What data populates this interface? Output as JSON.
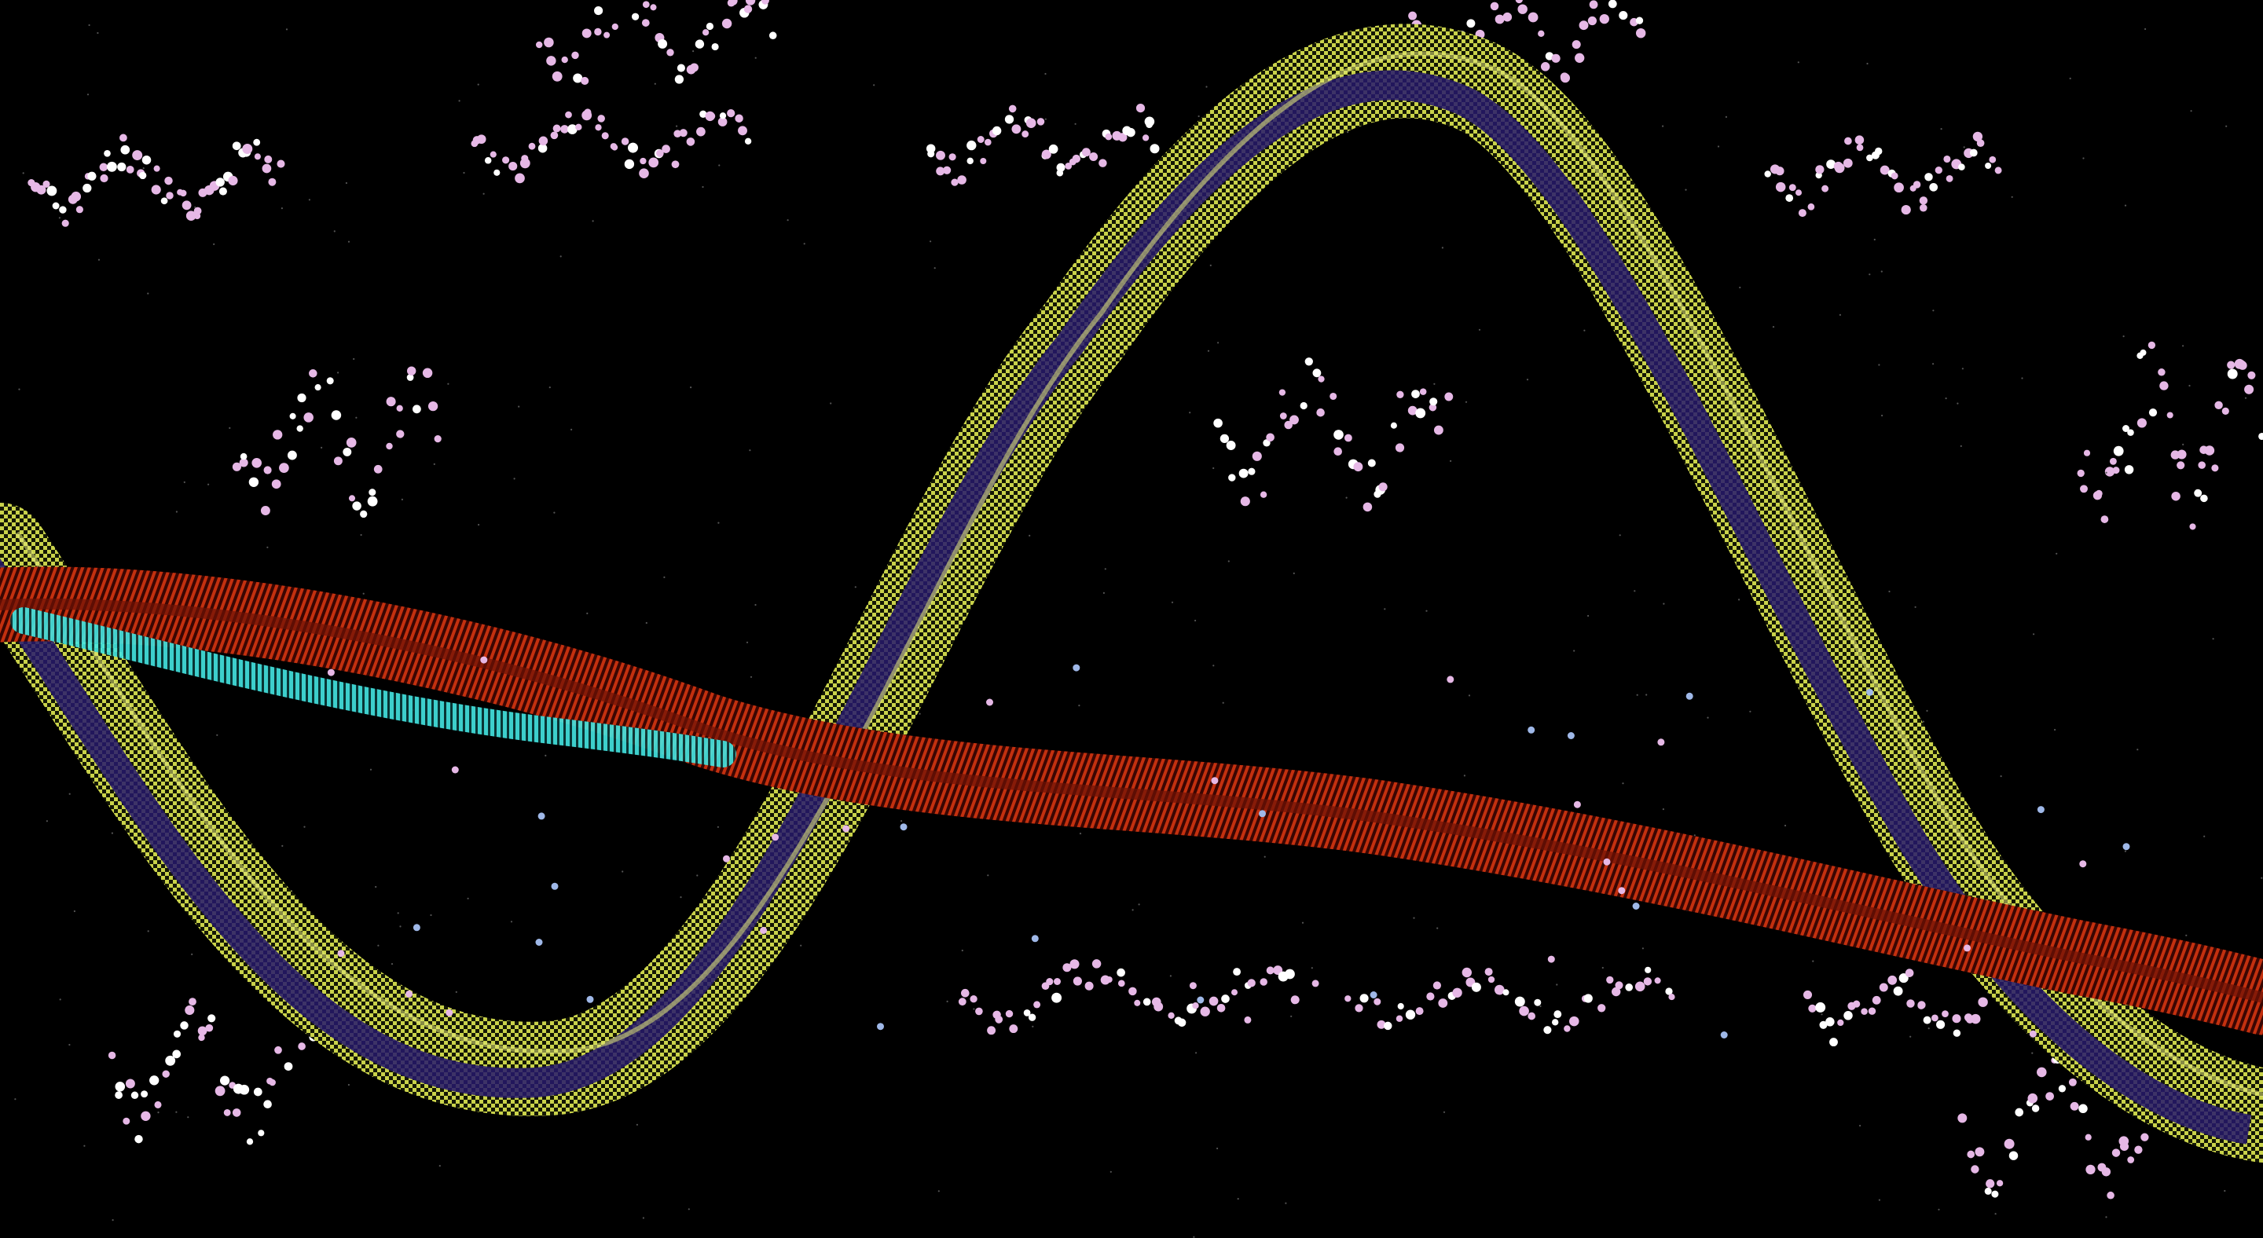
{
  "scene": {
    "description_kind": "abstract generative artwork",
    "background_color": "#000000",
    "colors": {
      "yellow_ribbon": "#b8c23a",
      "yellow_ribbon_light": "#e3ea7a",
      "indigo_core": "#23186b",
      "red_ribbon": "#b82a10",
      "red_ribbon_dark": "#6e1206",
      "cyan_core": "#3fe3e0",
      "particle_pink": "#e6b8e6",
      "particle_white": "#ffffff",
      "particle_blue": "#9fb8e8"
    }
  }
}
